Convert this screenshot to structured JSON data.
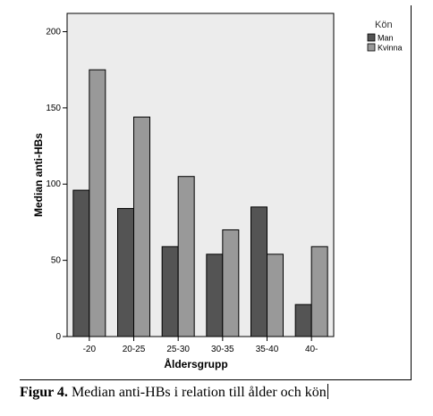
{
  "chart_data": {
    "type": "bar",
    "categories": [
      "-20",
      "20-25",
      "25-30",
      "30-35",
      "35-40",
      "40-"
    ],
    "series": [
      {
        "name": "Man",
        "values": [
          96,
          84,
          59,
          54,
          85,
          21
        ],
        "color": "#545454"
      },
      {
        "name": "Kvinna",
        "values": [
          175,
          144,
          105,
          70,
          54,
          59
        ],
        "color": "#999999"
      }
    ],
    "xlabel": "Åldersgrupp",
    "ylabel": "Median anti-HBs",
    "ylim": [
      0,
      212
    ],
    "yticks": [
      0,
      50,
      100,
      150,
      200
    ],
    "legend_title": "Kön",
    "legend_position": "top-right",
    "plot_background": "#ececec",
    "grid": false
  },
  "caption": {
    "label": "Figur 4.",
    "text": " Median anti-HBs i relation till ålder och kön"
  }
}
